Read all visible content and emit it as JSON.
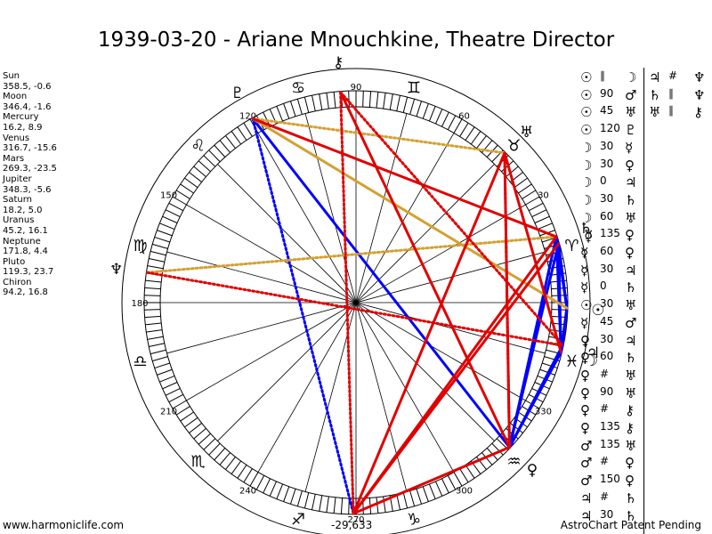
{
  "title": "1939-03-20 - Ariane Mnouchkine, Theatre Director",
  "planets": [
    {
      "name": "Sun",
      "glyph": "☉",
      "coords": "358.5, -0.6",
      "lon": 358.5
    },
    {
      "name": "Moon",
      "glyph": "☽",
      "coords": "346.4, -1.6",
      "lon": 346.4
    },
    {
      "name": "Mercury",
      "glyph": "☿",
      "coords": "16.2, 8.9",
      "lon": 16.2
    },
    {
      "name": "Venus",
      "glyph": "♀",
      "coords": "316.7, -15.6",
      "lon": 316.7
    },
    {
      "name": "Mars",
      "glyph": "♂",
      "coords": "269.3, -23.5",
      "lon": 269.3
    },
    {
      "name": "Jupiter",
      "glyph": "♃",
      "coords": "348.3, -5.6",
      "lon": 348.3
    },
    {
      "name": "Saturn",
      "glyph": "♄",
      "coords": "18.2, 5.0",
      "lon": 18.2
    },
    {
      "name": "Uranus",
      "glyph": "♅",
      "coords": "45.2, 16.1",
      "lon": 45.2
    },
    {
      "name": "Neptune",
      "glyph": "♆",
      "coords": "171.8, 4.4",
      "lon": 171.8
    },
    {
      "name": "Pluto",
      "glyph": "♇",
      "coords": "119.3, 23.7",
      "lon": 119.3
    },
    {
      "name": "Chiron",
      "glyph": "⚷",
      "coords": "94.2, 16.8",
      "lon": 94.2
    }
  ],
  "degree_labels": [
    {
      "deg": 30,
      "text": "30"
    },
    {
      "deg": 60,
      "text": "60"
    },
    {
      "deg": 90,
      "text": "90"
    },
    {
      "deg": 120,
      "text": "120"
    },
    {
      "deg": 150,
      "text": "150"
    },
    {
      "deg": 180,
      "text": "180"
    },
    {
      "deg": 210,
      "text": "210"
    },
    {
      "deg": 240,
      "text": "240"
    },
    {
      "deg": 270,
      "text": "270"
    },
    {
      "deg": 300,
      "text": "300"
    },
    {
      "deg": 330,
      "text": "330"
    }
  ],
  "zodiac": [
    {
      "deg": 15,
      "glyph": "♈",
      "name": "Aries"
    },
    {
      "deg": 45,
      "glyph": "♉",
      "name": "Taurus"
    },
    {
      "deg": 75,
      "glyph": "♊",
      "name": "Gemini"
    },
    {
      "deg": 105,
      "glyph": "♋",
      "name": "Cancer"
    },
    {
      "deg": 135,
      "glyph": "♌",
      "name": "Leo"
    },
    {
      "deg": 165,
      "glyph": "♍",
      "name": "Virgo"
    },
    {
      "deg": 195,
      "glyph": "♎",
      "name": "Libra"
    },
    {
      "deg": 225,
      "glyph": "♏",
      "name": "Scorpio"
    },
    {
      "deg": 255,
      "glyph": "♐",
      "name": "Sagittarius"
    },
    {
      "deg": 285,
      "glyph": "♑",
      "name": "Capricorn"
    },
    {
      "deg": 315,
      "glyph": "♒",
      "name": "Aquarius"
    },
    {
      "deg": 345,
      "glyph": "♓",
      "name": "Pisces"
    }
  ],
  "aspect_lines": [
    {
      "a": "Sun",
      "b": "Moon",
      "color": "#0000ff",
      "style": "solid"
    },
    {
      "a": "Sun",
      "b": "Jupiter",
      "color": "#0000ff",
      "style": "solid"
    },
    {
      "a": "Sun",
      "b": "Mercury",
      "color": "#0000ff",
      "style": "solid"
    },
    {
      "a": "Sun",
      "b": "Saturn",
      "color": "#0000ff",
      "style": "solid"
    },
    {
      "a": "Moon",
      "b": "Jupiter",
      "color": "#0000ff",
      "style": "solid"
    },
    {
      "a": "Moon",
      "b": "Saturn",
      "color": "#0000ff",
      "style": "solid"
    },
    {
      "a": "Moon",
      "b": "Mercury",
      "color": "#0000ff",
      "style": "solid"
    },
    {
      "a": "Jupiter",
      "b": "Venus",
      "color": "#0000ff",
      "style": "solid"
    },
    {
      "a": "Moon",
      "b": "Venus",
      "color": "#0000ff",
      "style": "solid"
    },
    {
      "a": "Mercury",
      "b": "Venus",
      "color": "#0000ff",
      "style": "solid"
    },
    {
      "a": "Saturn",
      "b": "Venus",
      "color": "#0000ff",
      "style": "solid"
    },
    {
      "a": "Pluto",
      "b": "Venus",
      "color": "#0000ff",
      "style": "solid"
    },
    {
      "a": "Pluto",
      "b": "Mars",
      "color": "#0000ff",
      "style": "dotted"
    },
    {
      "a": "Sun",
      "b": "Pluto",
      "color": "#d4a030",
      "style": "solid"
    },
    {
      "a": "Pluto",
      "b": "Uranus",
      "color": "#d4a030",
      "style": "dotted"
    },
    {
      "a": "Neptune",
      "b": "Saturn",
      "color": "#d4a030",
      "style": "dotted"
    },
    {
      "a": "Chiron",
      "b": "Venus",
      "color": "#e00000",
      "style": "solid"
    },
    {
      "a": "Chiron",
      "b": "Mars",
      "color": "#e00000",
      "style": "dotted"
    },
    {
      "a": "Chiron",
      "b": "Jupiter",
      "color": "#e00000",
      "style": "dotted"
    },
    {
      "a": "Mars",
      "b": "Uranus",
      "color": "#e00000",
      "style": "solid"
    },
    {
      "a": "Mars",
      "b": "Mercury",
      "color": "#e00000",
      "style": "solid"
    },
    {
      "a": "Mars",
      "b": "Saturn",
      "color": "#e00000",
      "style": "solid"
    },
    {
      "a": "Mars",
      "b": "Venus",
      "color": "#e00000",
      "style": "solid"
    },
    {
      "a": "Uranus",
      "b": "Venus",
      "color": "#e00000",
      "style": "solid"
    },
    {
      "a": "Uranus",
      "b": "Moon",
      "color": "#e00000",
      "style": "solid"
    },
    {
      "a": "Uranus",
      "b": "Venus",
      "color": "#e00000",
      "style": "dotted"
    },
    {
      "a": "Pluto",
      "b": "Saturn",
      "color": "#e00000",
      "style": "solid"
    },
    {
      "a": "Neptune",
      "b": "Jupiter",
      "color": "#e00000",
      "style": "dotted"
    }
  ],
  "aspect_table": {
    "col1": [
      {
        "g1": "☉",
        "op": "∥",
        "g2": "☽"
      },
      {
        "g1": "☉",
        "op": "90",
        "g2": "♂"
      },
      {
        "g1": "☉",
        "op": "45",
        "g2": "♅"
      },
      {
        "g1": "☉",
        "op": "120",
        "g2": "♇"
      },
      {
        "g1": "☽",
        "op": "30",
        "g2": "☿"
      },
      {
        "g1": "☽",
        "op": "30",
        "g2": "♀"
      },
      {
        "g1": "☽",
        "op": "0",
        "g2": "♃"
      },
      {
        "g1": "☽",
        "op": "30",
        "g2": "♄"
      },
      {
        "g1": "☽",
        "op": "60",
        "g2": "♅"
      },
      {
        "g1": "☽",
        "op": "135",
        "g2": "♀"
      },
      {
        "g1": "☿",
        "op": "60",
        "g2": "♀"
      },
      {
        "g1": "☿",
        "op": "30",
        "g2": "♃"
      },
      {
        "g1": "☿",
        "op": "0",
        "g2": "♄"
      },
      {
        "g1": "☉",
        "op": "30",
        "g2": "♅"
      },
      {
        "g1": "☿",
        "op": "45",
        "g2": "♂"
      },
      {
        "g1": "♀",
        "op": "30",
        "g2": "♃"
      },
      {
        "g1": "♀",
        "op": "60",
        "g2": "♄"
      },
      {
        "g1": "♀",
        "op": "#",
        "g2": "♅"
      },
      {
        "g1": "♀",
        "op": "90",
        "g2": "♅"
      },
      {
        "g1": "♀",
        "op": "#",
        "g2": "⚷"
      },
      {
        "g1": "♀",
        "op": "135",
        "g2": "⚷"
      },
      {
        "g1": "♂",
        "op": "135",
        "g2": "♅"
      },
      {
        "g1": "♂",
        "op": "#",
        "g2": "♀"
      },
      {
        "g1": "♂",
        "op": "150",
        "g2": "♀"
      },
      {
        "g1": "♃",
        "op": "#",
        "g2": "♄"
      },
      {
        "g1": "♃",
        "op": "30",
        "g2": "♄"
      }
    ],
    "col2": [
      {
        "g1": "♃",
        "op": "#",
        "g2": "♆"
      },
      {
        "g1": "♄",
        "op": "∥",
        "g2": "♆"
      },
      {
        "g1": "♅",
        "op": "∥",
        "g2": "⚷"
      }
    ]
  },
  "footer": {
    "left": "www.harmoniclife.com",
    "mid": "-29,633",
    "right": "AstroChart Patent Pending"
  }
}
